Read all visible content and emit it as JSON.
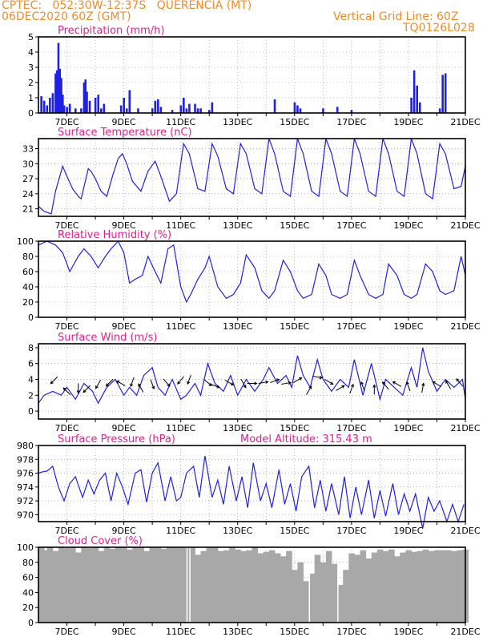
{
  "header": {
    "line1": "CPTEC:   052:30W-12:37S   QUERENCIA (MT)",
    "line2": "06DEC2020 60Z (GMT)",
    "right1": "Vertical Grid Line: 60Z",
    "right2": "TQ0126L028"
  },
  "colors": {
    "header": "#f08c28",
    "title": "#e0208c",
    "series": "#2020e0",
    "cloud": "#a8a8a8",
    "grid": "#888888"
  },
  "date_ticks": [
    "7DEC",
    "9DEC",
    "11DEC",
    "13DEC",
    "15DEC",
    "17DEC",
    "19DEC",
    "21DEC"
  ],
  "chart_data": [
    {
      "id": "precip",
      "type": "bar",
      "title": "Precipitation (mm/h)",
      "ylim": [
        0,
        5
      ],
      "yticks": [
        0,
        1,
        2,
        3,
        4,
        5
      ],
      "grid": true,
      "x": [
        6.1,
        6.2,
        6.3,
        6.4,
        6.5,
        6.6,
        6.65,
        6.7,
        6.75,
        6.8,
        6.85,
        6.9,
        7.0,
        7.1,
        7.3,
        7.5,
        7.6,
        7.65,
        7.7,
        7.8,
        8.0,
        8.1,
        8.2,
        8.3,
        8.9,
        9.0,
        9.1,
        9.2,
        9.5,
        10.0,
        10.1,
        10.2,
        10.3,
        10.7,
        11.0,
        11.1,
        11.2,
        11.3,
        11.5,
        11.6,
        11.7,
        12.0,
        12.1,
        14.3,
        15.0,
        15.1,
        15.2,
        16.0,
        16.5,
        17.0,
        19.1,
        19.2,
        19.3,
        19.4,
        20.1,
        20.2,
        20.3
      ],
      "values": [
        1.1,
        0.8,
        0.5,
        1.0,
        1.3,
        2.6,
        2.8,
        4.6,
        2.9,
        2.3,
        1.2,
        0.5,
        0.4,
        0.6,
        0.3,
        0.3,
        2.0,
        2.2,
        1.4,
        0.8,
        1.0,
        1.2,
        0.3,
        0.6,
        0.5,
        1.0,
        0.3,
        1.5,
        0.3,
        0.3,
        0.8,
        0.9,
        0.4,
        0.2,
        0.5,
        1.0,
        0.3,
        0.6,
        0.6,
        0.3,
        0.3,
        0.2,
        0.7,
        0.9,
        0.7,
        0.5,
        0.3,
        0.3,
        0.4,
        0.2,
        1.0,
        2.8,
        1.8,
        0.7,
        0.3,
        2.5,
        2.6
      ]
    },
    {
      "id": "temp",
      "type": "line",
      "title": "Surface Temperature (nC)",
      "ylim": [
        19.5,
        35
      ],
      "yticks": [
        21,
        24,
        27,
        30,
        33
      ],
      "grid": true,
      "x": [
        6.0,
        6.2,
        6.45,
        6.6,
        6.85,
        7.0,
        7.2,
        7.4,
        7.5,
        7.75,
        7.85,
        8.0,
        8.2,
        8.4,
        8.6,
        8.8,
        8.95,
        9.1,
        9.3,
        9.6,
        9.85,
        10.1,
        10.3,
        10.6,
        10.85,
        11.1,
        11.3,
        11.6,
        11.85,
        12.1,
        12.3,
        12.6,
        12.85,
        13.1,
        13.3,
        13.6,
        13.85,
        14.1,
        14.3,
        14.6,
        14.85,
        15.1,
        15.3,
        15.6,
        15.85,
        16.1,
        16.3,
        16.6,
        16.85,
        17.1,
        17.3,
        17.6,
        17.85,
        18.1,
        18.3,
        18.6,
        18.85,
        19.1,
        19.3,
        19.6,
        19.85,
        20.1,
        20.3,
        20.6,
        20.85,
        21.0
      ],
      "values": [
        21.5,
        20.5,
        20.0,
        24.5,
        29.5,
        27.5,
        25.0,
        23.5,
        23.0,
        29.0,
        28.5,
        27.0,
        24.5,
        23.5,
        27.5,
        31.0,
        32.0,
        30.0,
        26.5,
        24.5,
        28.5,
        30.5,
        27.5,
        22.5,
        24.0,
        34.0,
        32.0,
        25.0,
        24.5,
        34.0,
        31.5,
        25.0,
        24.0,
        34.0,
        32.0,
        25.0,
        24.0,
        35.0,
        32.0,
        24.5,
        23.5,
        35.0,
        32.0,
        24.5,
        23.5,
        35.0,
        32.0,
        24.5,
        23.5,
        35.0,
        32.0,
        24.5,
        23.5,
        35.0,
        32.0,
        24.5,
        23.5,
        35.0,
        32.0,
        24.0,
        23.0,
        34.0,
        32.0,
        25.0,
        25.5,
        29.5
      ]
    },
    {
      "id": "rh",
      "type": "line",
      "title": "Relative Humidity (%)",
      "ylim": [
        0,
        100
      ],
      "yticks": [
        0,
        20,
        40,
        60,
        80,
        100
      ],
      "grid": true,
      "x": [
        6.0,
        6.3,
        6.6,
        6.85,
        7.1,
        7.4,
        7.6,
        7.85,
        8.1,
        8.35,
        8.55,
        8.8,
        9.0,
        9.2,
        9.4,
        9.65,
        9.85,
        10.1,
        10.3,
        10.55,
        10.75,
        11.0,
        11.2,
        11.35,
        11.6,
        11.85,
        12.0,
        12.3,
        12.6,
        12.85,
        13.1,
        13.3,
        13.6,
        13.85,
        14.1,
        14.3,
        14.6,
        14.85,
        15.1,
        15.3,
        15.6,
        15.85,
        16.1,
        16.3,
        16.6,
        16.85,
        17.1,
        17.3,
        17.6,
        17.85,
        18.1,
        18.3,
        18.6,
        18.85,
        19.1,
        19.3,
        19.6,
        19.85,
        20.1,
        20.3,
        20.6,
        20.85,
        21.0
      ],
      "values": [
        95.0,
        100.0,
        95.0,
        85.0,
        60.0,
        80.0,
        90.0,
        80.0,
        65.0,
        80.0,
        90.0,
        100.0,
        85.0,
        45.0,
        50.0,
        55.0,
        80.0,
        60.0,
        45.0,
        90.0,
        95.0,
        40.0,
        20.0,
        30.0,
        50.0,
        65.0,
        80.0,
        40.0,
        25.0,
        30.0,
        45.0,
        82.0,
        65.0,
        35.0,
        25.0,
        35.0,
        75.0,
        60.0,
        35.0,
        25.0,
        30.0,
        70.0,
        55.0,
        30.0,
        25.0,
        30.0,
        75.0,
        55.0,
        30.0,
        25.0,
        30.0,
        70.0,
        55.0,
        30.0,
        25.0,
        30.0,
        70.0,
        60.0,
        35.0,
        30.0,
        35.0,
        80.0,
        55.0
      ]
    },
    {
      "id": "wind",
      "type": "line",
      "title": "Surface Wind (m/s)",
      "ylim": [
        -1,
        8.5
      ],
      "yticks": [
        0,
        2,
        4,
        6,
        8
      ],
      "grid": true,
      "x": [
        6.0,
        6.2,
        6.5,
        6.8,
        7.0,
        7.3,
        7.6,
        7.9,
        8.1,
        8.4,
        8.7,
        9.0,
        9.2,
        9.45,
        9.7,
        10.0,
        10.2,
        10.45,
        10.7,
        11.0,
        11.2,
        11.5,
        11.7,
        11.95,
        12.2,
        12.5,
        12.75,
        13.0,
        13.3,
        13.6,
        13.9,
        14.1,
        14.4,
        14.7,
        14.9,
        15.1,
        15.3,
        15.55,
        15.8,
        16.0,
        16.3,
        16.6,
        16.9,
        17.1,
        17.4,
        17.7,
        18.0,
        18.2,
        18.5,
        18.8,
        19.1,
        19.3,
        19.5,
        19.7,
        20.0,
        20.3,
        20.6,
        20.9,
        21.0
      ],
      "values": [
        1.0,
        2.0,
        2.5,
        2.0,
        3.0,
        1.5,
        3.5,
        2.5,
        1.0,
        3.0,
        4.0,
        2.0,
        3.0,
        2.0,
        4.5,
        5.5,
        3.0,
        2.0,
        4.0,
        1.5,
        2.0,
        3.5,
        2.0,
        6.0,
        3.5,
        2.5,
        4.5,
        2.0,
        4.0,
        2.5,
        4.0,
        5.5,
        3.5,
        4.5,
        3.0,
        7.0,
        4.5,
        3.0,
        6.5,
        4.0,
        2.5,
        4.0,
        3.0,
        6.5,
        2.0,
        6.0,
        1.5,
        4.0,
        3.0,
        2.0,
        5.5,
        3.0,
        8.0,
        5.0,
        2.5,
        4.0,
        3.0,
        4.0,
        1.5
      ],
      "arrows": [
        {
          "x": 6.55,
          "y": 3.9,
          "dir": 225
        },
        {
          "x": 7.0,
          "y": 2.5,
          "dir": 315
        },
        {
          "x": 7.4,
          "y": 2.9,
          "dir": 180
        },
        {
          "x": 7.7,
          "y": 2.8,
          "dir": 225
        },
        {
          "x": 8.1,
          "y": 3.4,
          "dir": 210
        },
        {
          "x": 8.5,
          "y": 3.6,
          "dir": 225
        },
        {
          "x": 8.9,
          "y": 3.5,
          "dir": 300
        },
        {
          "x": 9.3,
          "y": 3.7,
          "dir": 200
        },
        {
          "x": 9.6,
          "y": 2.9,
          "dir": 330
        },
        {
          "x": 10.0,
          "y": 3.4,
          "dir": 160
        },
        {
          "x": 10.5,
          "y": 3.6,
          "dir": 140
        },
        {
          "x": 11.0,
          "y": 3.9,
          "dir": 220
        },
        {
          "x": 11.3,
          "y": 4.0,
          "dir": 200
        },
        {
          "x": 11.95,
          "y": 3.6,
          "dir": 130
        },
        {
          "x": 12.2,
          "y": 3.2,
          "dir": 110
        },
        {
          "x": 12.7,
          "y": 3.6,
          "dir": 120
        },
        {
          "x": 13.2,
          "y": 3.5,
          "dir": 150
        },
        {
          "x": 13.5,
          "y": 3.5,
          "dir": 90
        },
        {
          "x": 13.9,
          "y": 3.6,
          "dir": 80
        },
        {
          "x": 14.3,
          "y": 3.8,
          "dir": 70
        },
        {
          "x": 14.7,
          "y": 3.5,
          "dir": 80
        },
        {
          "x": 15.1,
          "y": 3.9,
          "dir": 60
        },
        {
          "x": 15.5,
          "y": 2.6,
          "dir": 30
        },
        {
          "x": 15.8,
          "y": 4.3,
          "dir": 100
        },
        {
          "x": 16.2,
          "y": 3.7,
          "dir": 120
        },
        {
          "x": 16.6,
          "y": 2.9,
          "dir": 60
        },
        {
          "x": 17.0,
          "y": 2.8,
          "dir": 20
        },
        {
          "x": 17.4,
          "y": 3.1,
          "dir": 340
        },
        {
          "x": 17.8,
          "y": 2.7,
          "dir": 0
        },
        {
          "x": 18.2,
          "y": 3.2,
          "dir": 320
        },
        {
          "x": 18.6,
          "y": 3.4,
          "dir": 300
        },
        {
          "x": 19.0,
          "y": 3.1,
          "dir": 340
        },
        {
          "x": 19.5,
          "y": 2.9,
          "dir": 10
        },
        {
          "x": 20.0,
          "y": 3.4,
          "dir": 300
        },
        {
          "x": 20.4,
          "y": 3.3,
          "dir": 330
        },
        {
          "x": 20.8,
          "y": 3.6,
          "dir": 320
        }
      ]
    },
    {
      "id": "pres",
      "type": "line",
      "title": "Surface Pressure (hPa)",
      "extra": "Model Altitude: 315.43 m",
      "ylim": [
        969,
        980
      ],
      "yticks": [
        970,
        972,
        974,
        976,
        978,
        980
      ],
      "grid": true,
      "x": [
        6.0,
        6.15,
        6.3,
        6.5,
        6.7,
        6.9,
        7.1,
        7.3,
        7.55,
        7.75,
        7.95,
        8.15,
        8.35,
        8.55,
        8.75,
        8.95,
        9.15,
        9.4,
        9.6,
        9.8,
        10.0,
        10.2,
        10.45,
        10.65,
        10.85,
        11.0,
        11.2,
        11.45,
        11.65,
        11.85,
        12.1,
        12.3,
        12.5,
        12.7,
        12.95,
        13.15,
        13.35,
        13.55,
        13.8,
        14.0,
        14.2,
        14.45,
        14.65,
        14.85,
        15.05,
        15.25,
        15.5,
        15.7,
        15.9,
        16.1,
        16.3,
        16.55,
        16.75,
        16.95,
        17.15,
        17.35,
        17.6,
        17.8,
        18.0,
        18.2,
        18.45,
        18.65,
        18.85,
        19.05,
        19.25,
        19.5,
        19.7,
        19.9,
        20.1,
        20.35,
        20.55,
        20.75,
        20.95
      ],
      "values": [
        976.0,
        976.2,
        976.3,
        977.0,
        974.0,
        972.0,
        974.5,
        975.5,
        972.5,
        975.0,
        973.0,
        975.0,
        976.0,
        972.0,
        976.0,
        974.0,
        971.5,
        976.0,
        976.5,
        971.8,
        976.0,
        977.5,
        972.0,
        975.5,
        972.0,
        972.5,
        976.0,
        977.0,
        972.5,
        978.5,
        972.5,
        975.0,
        971.5,
        977.0,
        972.0,
        975.5,
        971.0,
        977.5,
        972.0,
        974.5,
        971.0,
        976.5,
        971.5,
        974.5,
        970.5,
        975.5,
        977.0,
        971.0,
        975.0,
        970.5,
        974.5,
        970.0,
        975.5,
        969.5,
        974.0,
        970.0,
        975.0,
        969.5,
        973.5,
        969.8,
        974.5,
        970.0,
        973.0,
        970.5,
        973.0,
        968.0,
        972.5,
        970.5,
        972.0,
        969.0,
        971.5,
        969.0,
        971.5
      ]
    },
    {
      "id": "cloud",
      "type": "bar",
      "title": "Cloud Cover (%)",
      "ylim": [
        0,
        100
      ],
      "yticks": [
        0,
        20,
        40,
        60,
        80,
        100
      ],
      "grid": true,
      "x": [
        6.0,
        6.1,
        6.3,
        6.5,
        6.7,
        6.9,
        7.1,
        7.3,
        7.5,
        7.7,
        7.9,
        8.1,
        8.3,
        8.5,
        8.7,
        8.9,
        9.1,
        9.3,
        9.5,
        9.7,
        9.9,
        10.1,
        10.3,
        10.5,
        10.7,
        10.9,
        11.1,
        11.3,
        11.5,
        11.7,
        11.9,
        12.1,
        12.3,
        12.5,
        12.7,
        12.9,
        13.1,
        13.3,
        13.5,
        13.7,
        13.9,
        14.1,
        14.3,
        14.5,
        14.7,
        14.9,
        15.1,
        15.3,
        15.5,
        15.7,
        15.9,
        16.1,
        16.3,
        16.5,
        16.7,
        16.9,
        17.1,
        17.3,
        17.5,
        17.7,
        17.9,
        18.1,
        18.3,
        18.5,
        18.7,
        18.9,
        19.1,
        19.3,
        19.5,
        19.7,
        19.9,
        20.1,
        20.3,
        20.5,
        20.7,
        20.9
      ],
      "values": [
        100,
        96,
        100,
        95,
        100,
        99,
        100,
        93,
        100,
        99,
        100,
        95,
        100,
        98,
        100,
        100,
        97,
        100,
        100,
        95,
        100,
        100,
        98,
        100,
        100,
        100,
        99,
        100,
        90,
        95,
        100,
        100,
        95,
        96,
        100,
        97,
        95,
        96,
        100,
        92,
        94,
        96,
        92,
        88,
        95,
        70,
        80,
        55,
        65,
        90,
        80,
        95,
        78,
        50,
        70,
        92,
        90,
        96,
        85,
        93,
        97,
        95,
        97,
        88,
        93,
        96,
        94,
        95,
        97,
        95,
        96,
        96,
        96,
        95,
        96,
        97
      ],
      "gaps": [
        11.2,
        11.3,
        15.5,
        16.5
      ]
    }
  ]
}
